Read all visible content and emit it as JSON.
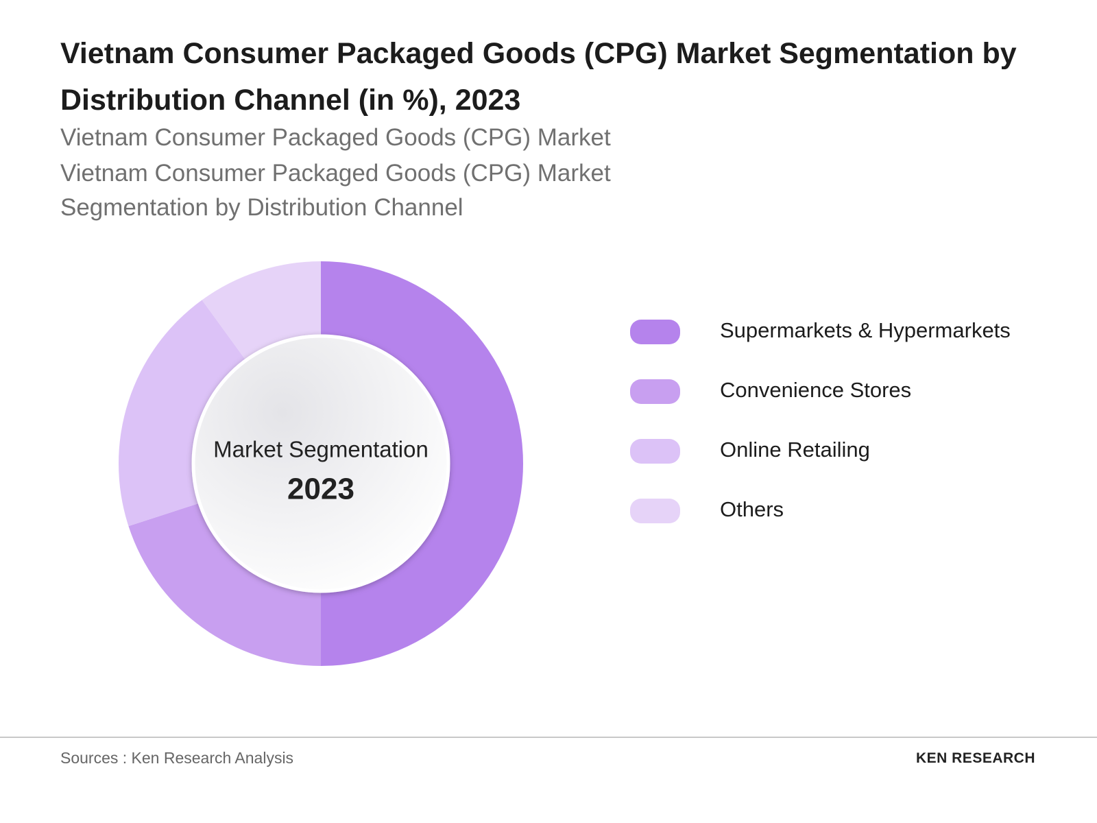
{
  "chart_data": {
    "type": "donut",
    "title": "Vietnam Consumer Packaged Goods (CPG) Market Segmentation by Distribution Channel  (in %), 2023",
    "subtitle": [
      "Vietnam Consumer Packaged Goods (CPG) Market",
      "Vietnam Consumer Packaged Goods (CPG) Market Segmentation by Distribution Channel"
    ],
    "center_label": "Market Segmentation",
    "center_year": "2023",
    "categories": [
      "Supermarkets & Hypermarkets",
      "Convenience Stores",
      "Online Retailing",
      "Others"
    ],
    "values": [
      50,
      20,
      20,
      10
    ],
    "colors": [
      "#b583ec",
      "#c89ff0",
      "#dcc2f7",
      "#e6d3f8"
    ],
    "legend": "right"
  },
  "footer": {
    "source": "Sources : Ken Research Analysis",
    "logo": "KEN RESEARCH"
  }
}
